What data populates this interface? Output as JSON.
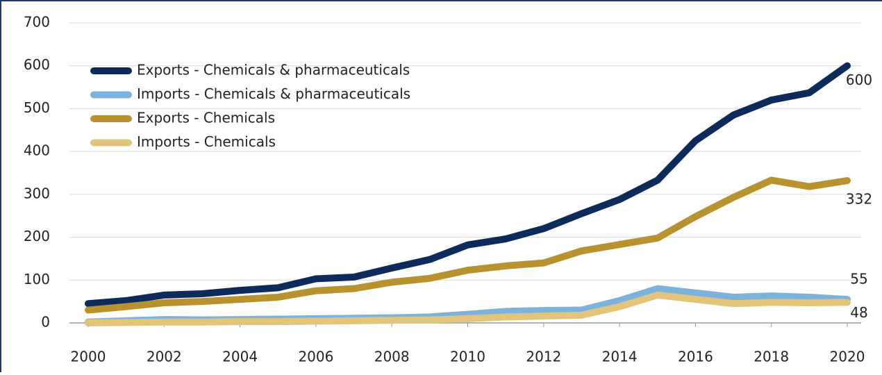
{
  "chart_data": {
    "type": "line",
    "x": [
      2000,
      2001,
      2002,
      2003,
      2004,
      2005,
      2006,
      2007,
      2008,
      2009,
      2010,
      2011,
      2012,
      2013,
      2014,
      2015,
      2016,
      2017,
      2018,
      2019,
      2020
    ],
    "series": [
      {
        "name": "Exports - Chemicals & pharmaceuticals",
        "color": "#0d2b5a",
        "values": [
          45,
          52,
          65,
          68,
          76,
          82,
          103,
          107,
          128,
          148,
          182,
          196,
          220,
          255,
          288,
          333,
          425,
          485,
          520,
          537,
          600
        ]
      },
      {
        "name": "Imports - Chemicals & pharmaceuticals",
        "color": "#7bb3dc",
        "values": [
          2,
          5,
          8,
          7,
          8,
          9,
          10,
          11,
          12,
          14,
          20,
          27,
          29,
          30,
          52,
          80,
          70,
          60,
          63,
          60,
          55
        ]
      },
      {
        "name": "Exports - Chemicals",
        "color": "#b8922e",
        "values": [
          30,
          38,
          47,
          50,
          55,
          60,
          75,
          80,
          95,
          104,
          123,
          133,
          140,
          168,
          183,
          198,
          248,
          293,
          333,
          318,
          332
        ]
      },
      {
        "name": "Imports - Chemicals",
        "color": "#e2c47a",
        "values": [
          0,
          1,
          2,
          2,
          3,
          3,
          4,
          5,
          6,
          7,
          10,
          14,
          16,
          18,
          38,
          65,
          55,
          45,
          48,
          47,
          48
        ]
      }
    ],
    "xlim": [
      1999.5,
      2020.4
    ],
    "xticks": [
      2000,
      2002,
      2004,
      2006,
      2008,
      2010,
      2012,
      2014,
      2016,
      2018,
      2020
    ],
    "ylim": [
      0,
      700
    ],
    "yticks": [
      0,
      100,
      200,
      300,
      400,
      500,
      600,
      700
    ],
    "grid": true,
    "legend": "upper left"
  }
}
